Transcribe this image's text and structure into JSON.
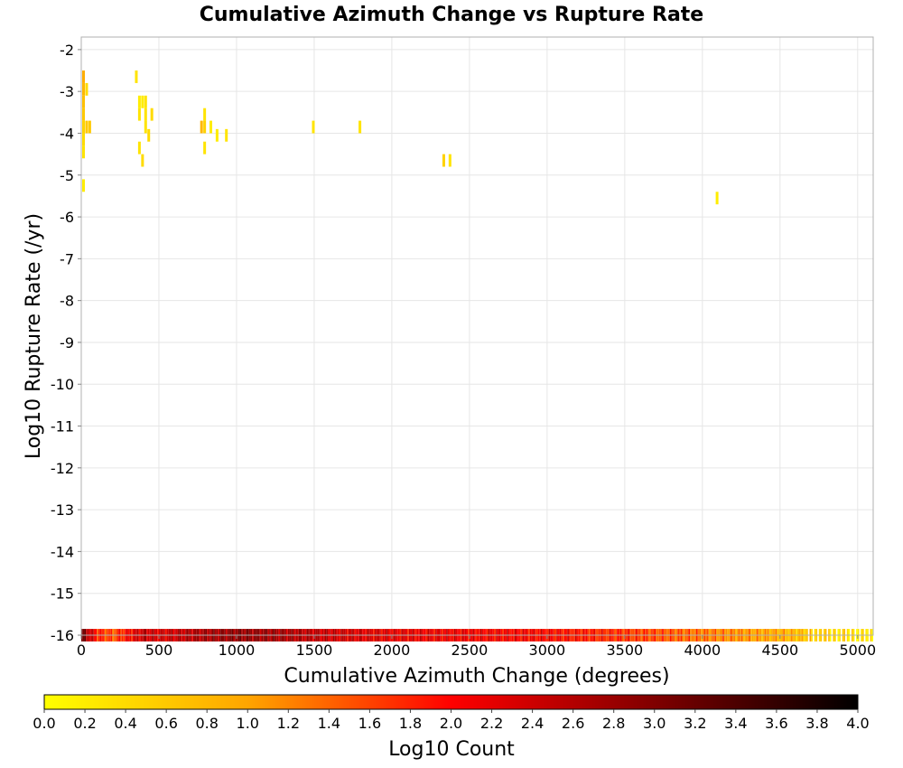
{
  "chart_data": {
    "type": "heatmap",
    "title": "Cumulative Azimuth Change vs Rupture Rate",
    "xlabel": "Cumulative Azimuth Change (degrees)",
    "ylabel": "Log10 Rupture Rate (/yr)",
    "xlim": [
      0,
      5100
    ],
    "ylim": [
      -16,
      -1.7
    ],
    "x_ticks": [
      0,
      500,
      1000,
      1500,
      2000,
      2500,
      3000,
      3500,
      4000,
      4500,
      5000
    ],
    "y_ticks": [
      -2,
      -3,
      -4,
      -5,
      -6,
      -7,
      -8,
      -9,
      -10,
      -11,
      -12,
      -13,
      -14,
      -15,
      -16
    ],
    "grid": true,
    "cell_width": 20,
    "cell_height": 0.3,
    "points": [
      {
        "x": 10,
        "y": -2.65,
        "z": 0.9
      },
      {
        "x": 10,
        "y": -2.95,
        "z": 0.8
      },
      {
        "x": 10,
        "y": -3.25,
        "z": 0.7
      },
      {
        "x": 10,
        "y": -3.55,
        "z": 0.6
      },
      {
        "x": 10,
        "y": -3.85,
        "z": 0.5
      },
      {
        "x": 10,
        "y": -4.15,
        "z": 0.4
      },
      {
        "x": 10,
        "y": -4.45,
        "z": 0.3
      },
      {
        "x": 10,
        "y": -5.25,
        "z": 0.2
      },
      {
        "x": 30,
        "y": -2.95,
        "z": 0.4
      },
      {
        "x": 30,
        "y": -3.85,
        "z": 0.6
      },
      {
        "x": 50,
        "y": -3.85,
        "z": 0.6
      },
      {
        "x": 350,
        "y": -2.65,
        "z": 0.3
      },
      {
        "x": 370,
        "y": -3.25,
        "z": 0.2
      },
      {
        "x": 370,
        "y": -3.55,
        "z": 0.3
      },
      {
        "x": 370,
        "y": -4.35,
        "z": 0.3
      },
      {
        "x": 390,
        "y": -3.25,
        "z": 0.2
      },
      {
        "x": 390,
        "y": -4.65,
        "z": 0.4
      },
      {
        "x": 410,
        "y": -3.25,
        "z": 0.3
      },
      {
        "x": 410,
        "y": -3.55,
        "z": 0.3
      },
      {
        "x": 410,
        "y": -3.85,
        "z": 0.3
      },
      {
        "x": 430,
        "y": -4.05,
        "z": 0.4
      },
      {
        "x": 450,
        "y": -3.55,
        "z": 0.4
      },
      {
        "x": 770,
        "y": -3.85,
        "z": 0.8
      },
      {
        "x": 790,
        "y": -3.55,
        "z": 0.3
      },
      {
        "x": 790,
        "y": -3.85,
        "z": 0.5
      },
      {
        "x": 790,
        "y": -4.35,
        "z": 0.3
      },
      {
        "x": 830,
        "y": -3.85,
        "z": 0.2
      },
      {
        "x": 870,
        "y": -4.05,
        "z": 0.2
      },
      {
        "x": 930,
        "y": -4.05,
        "z": 0.3
      },
      {
        "x": 1490,
        "y": -3.85,
        "z": 0.3
      },
      {
        "x": 1790,
        "y": -3.85,
        "z": 0.3
      },
      {
        "x": 2330,
        "y": -4.65,
        "z": 0.5
      },
      {
        "x": 2370,
        "y": -4.65,
        "z": 0.3
      },
      {
        "x": 4090,
        "y": -5.55,
        "z": 0.2
      }
    ],
    "bottom_row": {
      "y": -16,
      "note_x_range": [
        0,
        5100
      ],
      "profile": [
        {
          "x": 0,
          "z": 3.1
        },
        {
          "x": 100,
          "z": 1.8
        },
        {
          "x": 200,
          "z": 1.5
        },
        {
          "x": 300,
          "z": 2.0
        },
        {
          "x": 400,
          "z": 2.5
        },
        {
          "x": 500,
          "z": 2.3
        },
        {
          "x": 700,
          "z": 2.6
        },
        {
          "x": 1000,
          "z": 2.9
        },
        {
          "x": 1300,
          "z": 2.7
        },
        {
          "x": 1600,
          "z": 2.4
        },
        {
          "x": 2000,
          "z": 2.2
        },
        {
          "x": 2500,
          "z": 2.1
        },
        {
          "x": 3000,
          "z": 2.0
        },
        {
          "x": 3500,
          "z": 1.7
        },
        {
          "x": 4000,
          "z": 1.3
        },
        {
          "x": 4500,
          "z": 0.9
        },
        {
          "x": 4800,
          "z": 0.5
        },
        {
          "x": 5100,
          "z": 0.2
        }
      ]
    },
    "colorbar": {
      "label": "Log10 Count",
      "min": 0.0,
      "max": 4.0,
      "ticks": [
        "0.0",
        "0.2",
        "0.4",
        "0.6",
        "0.8",
        "1.0",
        "1.2",
        "1.4",
        "1.6",
        "1.8",
        "2.0",
        "2.2",
        "2.4",
        "2.6",
        "2.8",
        "3.0",
        "3.2",
        "3.4",
        "3.6",
        "3.8",
        "4.0"
      ],
      "stops": [
        "#ffff00",
        "#ffa500",
        "#ff0000",
        "#800000",
        "#000000"
      ]
    }
  }
}
